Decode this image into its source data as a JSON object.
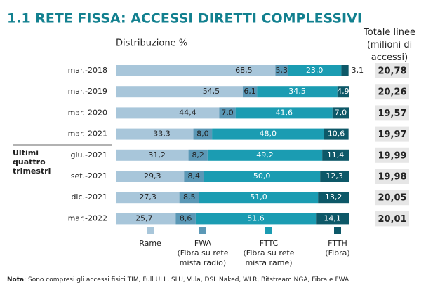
{
  "chart_data": {
    "type": "stacked_barh",
    "title": "1.1 RETE FISSA: ACCESSI DIRETTI COMPLESSIVI",
    "subtitle": "Distribuzione %",
    "totals_title": "Totale linee\n(milioni di accessi)",
    "group_label": "Ultimi quattro trimestri",
    "note_label": "Nota",
    "note": ": Sono compresi gli accessi fisici TIM, Full ULL, SLU, Vula, DSL Naked, WLR, Bitstream NGA, Fibra e FWA",
    "categories": [
      "mar.-2018",
      "mar.-2019",
      "mar.-2020",
      "mar.-2021",
      "giu.-2021",
      "set.-2021",
      "dic.-2021",
      "mar.-2022"
    ],
    "xlim": [
      0,
      100
    ],
    "series": [
      {
        "name": "Rame",
        "color": "#a8c6da",
        "values": [
          68.5,
          54.5,
          44.4,
          33.3,
          31.2,
          29.3,
          27.3,
          25.7
        ],
        "value_labels": [
          "68,5",
          "54,5",
          "44,4",
          "33,3",
          "31,2",
          "29,3",
          "27,3",
          "25,7"
        ]
      },
      {
        "name": "FWA\n(Fibra su rete\nmista radio)",
        "color": "#5b98b6",
        "values": [
          5.3,
          6.1,
          7.0,
          8.0,
          8.2,
          8.4,
          8.5,
          8.6
        ],
        "value_labels": [
          "5,3",
          "6,1",
          "7,0",
          "8,0",
          "8,2",
          "8,4",
          "8,5",
          "8,6"
        ]
      },
      {
        "name": "FTTC\n(Fibra su rete\nmista rame)",
        "color": "#1b9cb2",
        "values": [
          23.0,
          34.5,
          41.6,
          48.0,
          49.2,
          50.0,
          51.0,
          51.6
        ],
        "value_labels": [
          "23,0",
          "34,5",
          "41,6",
          "48,0",
          "49,2",
          "50,0",
          "51,0",
          "51,6"
        ]
      },
      {
        "name": "FTTH\n(Fibra)",
        "color": "#0d5868",
        "values": [
          3.1,
          4.9,
          7.0,
          10.6,
          11.4,
          12.3,
          13.2,
          14.1
        ],
        "value_labels": [
          "3,1",
          "4,9",
          "7,0",
          "10,6",
          "11,4",
          "12,3",
          "13,2",
          "14,1"
        ]
      }
    ],
    "totals": {
      "values": [
        20.78,
        20.26,
        19.57,
        19.97,
        19.99,
        19.98,
        20.05,
        20.01
      ],
      "value_labels": [
        "20,78",
        "20,26",
        "19,57",
        "19,97",
        "19,99",
        "19,98",
        "20,05",
        "20,01"
      ]
    }
  }
}
